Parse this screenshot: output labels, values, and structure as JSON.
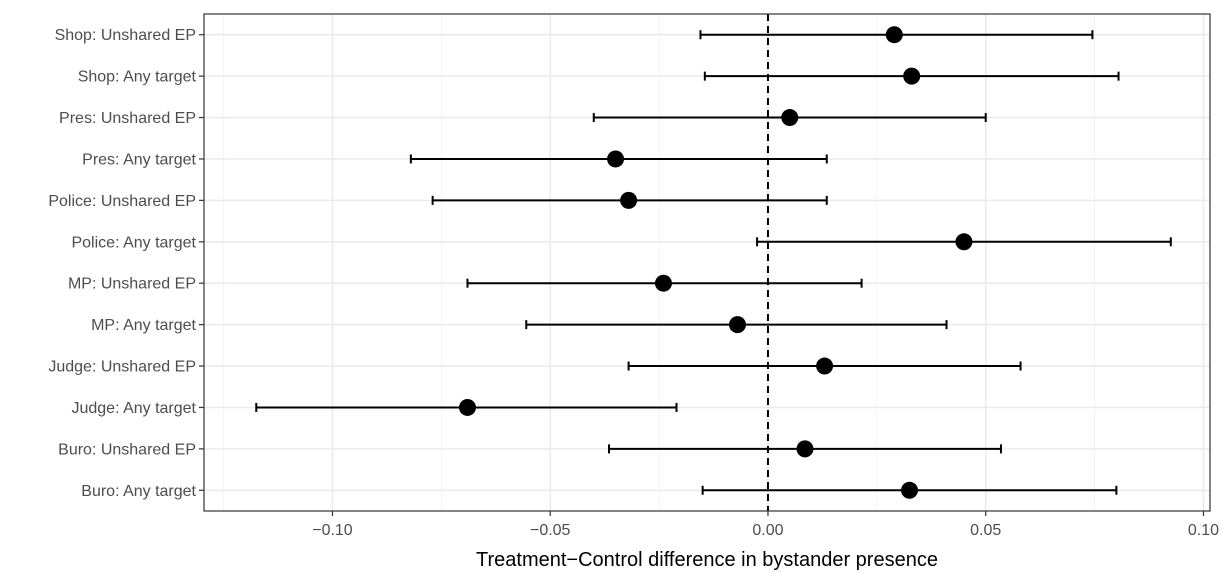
{
  "chart_data": {
    "type": "scatter",
    "title": "",
    "xlabel": "Treatment−Control difference in bystander presence",
    "ylabel": "",
    "xlim": [
      -0.1295,
      0.1015
    ],
    "x_ticks": [
      -0.1,
      -0.05,
      0.0,
      0.05,
      0.1
    ],
    "x_tick_labels": [
      "−0.10",
      "−0.05",
      "0.00",
      "0.05",
      "0.10"
    ],
    "grid": true,
    "reference_line": {
      "x": 0,
      "style": "dashed"
    },
    "categories": [
      "Shop: Unshared EP",
      "Shop: Any target",
      "Pres: Unshared EP",
      "Pres: Any target",
      "Police: Unshared EP",
      "Police: Any target",
      "MP: Unshared EP",
      "MP: Any target",
      "Judge: Unshared EP",
      "Judge: Any target",
      "Buro: Unshared EP",
      "Buro: Any target"
    ],
    "estimates": [
      0.029,
      0.033,
      0.005,
      -0.035,
      -0.032,
      0.045,
      -0.024,
      -0.007,
      0.013,
      -0.069,
      0.0085,
      0.0325
    ],
    "ci_lower": [
      -0.0155,
      -0.0145,
      -0.04,
      -0.082,
      -0.077,
      -0.0025,
      -0.069,
      -0.0555,
      -0.032,
      -0.1175,
      -0.0365,
      -0.015
    ],
    "ci_upper": [
      0.0745,
      0.0805,
      0.05,
      0.0135,
      0.0135,
      0.0925,
      0.0215,
      0.041,
      0.058,
      -0.021,
      0.0535,
      0.08
    ],
    "point_color": "#000000",
    "errorbar_color": "#000000"
  }
}
